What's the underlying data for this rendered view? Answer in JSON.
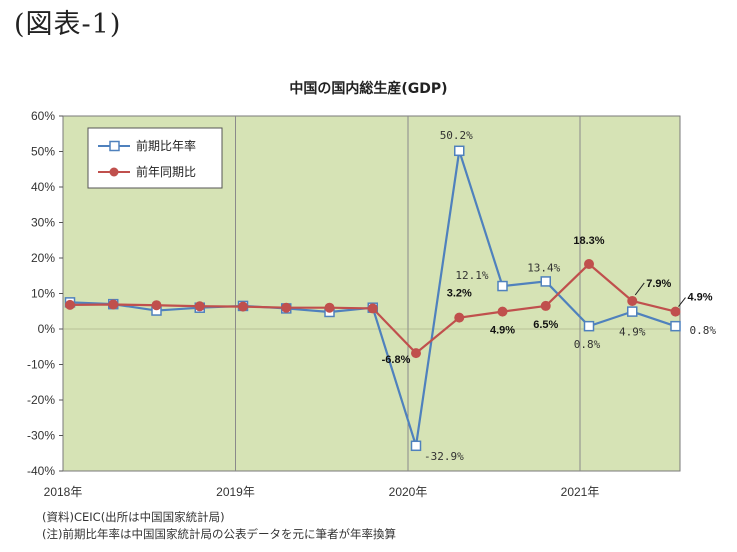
{
  "heading": "(図表-1)",
  "notes": {
    "source": "(資料)CEIC(出所は中国国家統計局)",
    "note": "(注)前期比年率は中国国家統計局の公表データを元に筆者が年率換算"
  },
  "colors": {
    "plot_bg": "#d6e3b5",
    "series_blue": "#4f81bd",
    "series_red": "#c0504d",
    "grid": "#8a8a8a"
  },
  "chart_data": {
    "type": "line",
    "title": "中国の国内総生産(GDP)",
    "ylim": [
      -40,
      60
    ],
    "yticks": [
      "60%",
      "50%",
      "40%",
      "30%",
      "20%",
      "10%",
      "0%",
      "-10%",
      "-20%",
      "-30%",
      "-40%"
    ],
    "ytick_values": [
      60,
      50,
      40,
      30,
      20,
      10,
      0,
      -10,
      -20,
      -30,
      -40
    ],
    "year_labels": [
      "2018年",
      "2019年",
      "2020年",
      "2021年"
    ],
    "year_label_quarter_index": [
      0,
      4,
      8,
      12
    ],
    "quarters": [
      "2018Q1",
      "2018Q2",
      "2018Q3",
      "2018Q4",
      "2019Q1",
      "2019Q2",
      "2019Q3",
      "2019Q4",
      "2020Q1",
      "2020Q2",
      "2020Q3",
      "2020Q4",
      "2021Q1",
      "2021Q2",
      "2021Q3"
    ],
    "grid": "vertical lines at year boundaries",
    "legend_position": "top-left",
    "series": [
      {
        "name": "前期比年率",
        "marker": "hollow-square",
        "color": "#4f81bd",
        "values": [
          7.5,
          7.0,
          5.2,
          6.0,
          6.5,
          5.8,
          4.8,
          6.0,
          -32.9,
          50.2,
          12.1,
          13.4,
          0.8,
          4.9,
          0.8
        ],
        "labels": [
          {
            "index": 8,
            "text": "-32.9%"
          },
          {
            "index": 9,
            "text": "50.2%"
          },
          {
            "index": 10,
            "text": "12.1%"
          },
          {
            "index": 11,
            "text": "13.4%"
          },
          {
            "index": 12,
            "text": "0.8%"
          },
          {
            "index": 13,
            "text": "4.9%"
          },
          {
            "index": 14,
            "text": "0.8%"
          }
        ]
      },
      {
        "name": "前年同期比",
        "marker": "filled-circle",
        "color": "#c0504d",
        "values": [
          6.8,
          6.9,
          6.7,
          6.4,
          6.3,
          6.0,
          6.0,
          5.8,
          -6.8,
          3.2,
          4.9,
          6.5,
          18.3,
          7.9,
          4.9
        ],
        "labels": [
          {
            "index": 8,
            "text": "-6.8%"
          },
          {
            "index": 9,
            "text": "3.2%"
          },
          {
            "index": 10,
            "text": "4.9%"
          },
          {
            "index": 11,
            "text": "6.5%"
          },
          {
            "index": 12,
            "text": "18.3%"
          },
          {
            "index": 13,
            "text": "7.9%"
          },
          {
            "index": 14,
            "text": "4.9%"
          }
        ]
      }
    ]
  }
}
